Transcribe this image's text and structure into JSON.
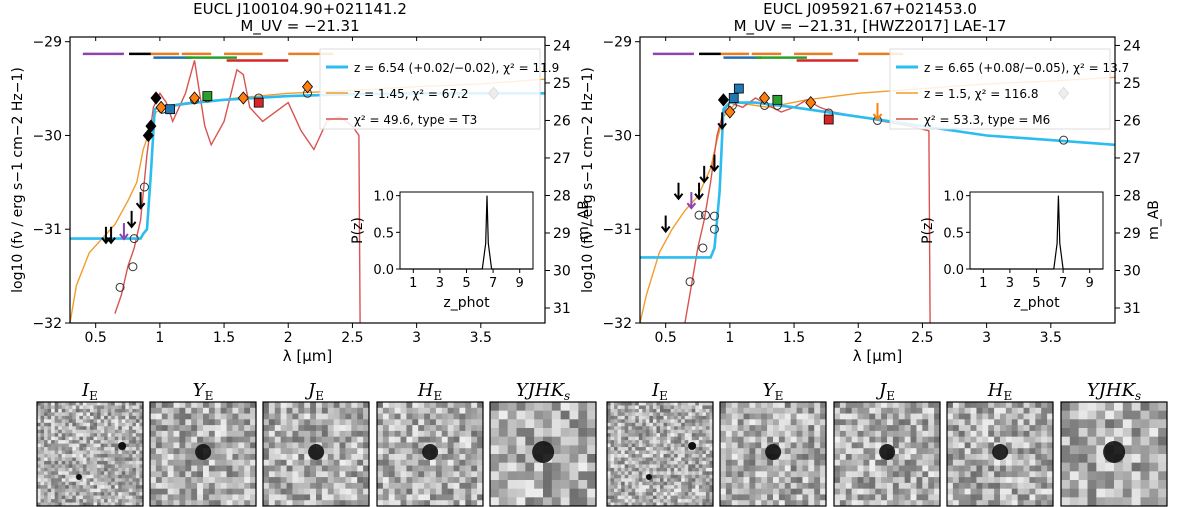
{
  "chart_data": [
    {
      "type": "line",
      "title": "EUCL J100104.90+021141.2",
      "subtitle": "M_UV = −21.31",
      "xlabel": "λ [μm]",
      "ylabel": "log10 (fν / erg s−1 cm−2 Hz−1)",
      "y2label": "m_AB",
      "xlim": [
        0.3,
        4.0
      ],
      "ylim": [
        -32.0,
        -28.95
      ],
      "xticks": [
        "0.5",
        "1",
        "1.5",
        "2",
        "2.5",
        "3",
        "3.5"
      ],
      "yticks": [
        "−29",
        "−30",
        "−31",
        "−32"
      ],
      "y2ticks": [
        "24",
        "25",
        "26",
        "27",
        "28",
        "29",
        "30",
        "31"
      ],
      "legend": [
        "z = 6.54 (+0.02/−0.02), χ² = 11.9",
        "z = 1.45, χ² = 67.2",
        "χ² = 49.6, type = T3"
      ],
      "series_colors": {
        "highz": "#2bbcf0",
        "lowz": "#f39c2a",
        "brown_dwarf": "#d9534f"
      },
      "series": [
        {
          "name": "high-z galaxy",
          "x": [
            0.3,
            0.85,
            0.87,
            0.9,
            0.93,
            0.96,
            1.0,
            1.2,
            1.5,
            2.0,
            2.5,
            3.0,
            3.5,
            4.0
          ],
          "y": [
            -31.1,
            -31.1,
            -31.05,
            -31.0,
            -30.4,
            -29.72,
            -29.7,
            -29.66,
            -29.62,
            -29.58,
            -29.56,
            -29.55,
            -29.55,
            -29.55
          ]
        },
        {
          "name": "low-z galaxy",
          "x": [
            0.3,
            0.35,
            0.45,
            0.55,
            0.65,
            0.75,
            0.82,
            0.87,
            0.92,
            0.97,
            1.05,
            1.3,
            1.6,
            2.0,
            2.5,
            3.0,
            3.5,
            4.0
          ],
          "y": [
            -32.0,
            -31.6,
            -31.25,
            -31.1,
            -30.95,
            -30.7,
            -30.5,
            -30.15,
            -29.95,
            -29.75,
            -29.7,
            -29.65,
            -29.6,
            -29.55,
            -29.52,
            -29.48,
            -29.45,
            -29.4
          ]
        },
        {
          "name": "T3 brown dwarf",
          "x": [
            0.65,
            0.7,
            0.75,
            0.8,
            0.85,
            0.9,
            0.95,
            1.0,
            1.05,
            1.1,
            1.15,
            1.2,
            1.27,
            1.35,
            1.4,
            1.5,
            1.6,
            1.65,
            1.7,
            1.8,
            2.0,
            2.1,
            2.2,
            2.3,
            2.4,
            2.5,
            2.55,
            2.56
          ],
          "y": [
            -31.9,
            -31.7,
            -31.4,
            -31.2,
            -30.9,
            -30.2,
            -29.7,
            -29.55,
            -29.65,
            -29.85,
            -29.7,
            -29.55,
            -29.2,
            -29.9,
            -30.1,
            -29.85,
            -29.3,
            -29.35,
            -29.7,
            -29.85,
            -29.65,
            -29.95,
            -30.15,
            -29.85,
            -29.8,
            -29.9,
            -30.0,
            -32.0
          ]
        }
      ],
      "observed": [
        {
          "x": 0.58,
          "y": -31.07,
          "type": "upper_limit",
          "color": "black"
        },
        {
          "x": 0.62,
          "y": -31.07,
          "type": "upper_limit",
          "color": "black"
        },
        {
          "x": 0.72,
          "y": -31.03,
          "type": "upper_limit",
          "color": "purple"
        },
        {
          "x": 0.78,
          "y": -30.9,
          "type": "upper_limit",
          "color": "black"
        },
        {
          "x": 0.85,
          "y": -30.7,
          "type": "upper_limit",
          "color": "black"
        },
        {
          "x": 0.91,
          "y": -30.0,
          "type": "diamond",
          "color": "black"
        },
        {
          "x": 0.93,
          "y": -29.9,
          "type": "diamond",
          "color": "black"
        },
        {
          "x": 0.97,
          "y": -29.6,
          "type": "diamond",
          "color": "black"
        },
        {
          "x": 1.01,
          "y": -29.7,
          "type": "diamond",
          "color": "orange"
        },
        {
          "x": 1.08,
          "y": -29.72,
          "type": "square",
          "color": "blue"
        },
        {
          "x": 1.27,
          "y": -29.6,
          "type": "diamond",
          "color": "orange"
        },
        {
          "x": 1.37,
          "y": -29.58,
          "type": "square",
          "color": "green"
        },
        {
          "x": 1.65,
          "y": -29.6,
          "type": "diamond",
          "color": "orange"
        },
        {
          "x": 1.77,
          "y": -29.65,
          "type": "square",
          "color": "red"
        },
        {
          "x": 2.15,
          "y": -29.48,
          "type": "diamond",
          "color": "orange"
        },
        {
          "x": 3.6,
          "y": -29.55,
          "type": "diamond",
          "color": "gray"
        }
      ],
      "model_points": [
        {
          "x": 0.69,
          "y": -31.62
        },
        {
          "x": 0.79,
          "y": -31.4
        },
        {
          "x": 0.8,
          "y": -31.1
        },
        {
          "x": 0.88,
          "y": -30.55
        },
        {
          "x": 1.02,
          "y": -29.72
        },
        {
          "x": 1.27,
          "y": -29.62
        },
        {
          "x": 1.37,
          "y": -29.6
        },
        {
          "x": 1.77,
          "y": -29.6
        },
        {
          "x": 2.15,
          "y": -29.55
        },
        {
          "x": 3.6,
          "y": -29.55
        }
      ],
      "filter_bars": [
        {
          "x0": 0.4,
          "x1": 0.72,
          "y": -29.13,
          "color": "#8e44ad"
        },
        {
          "x0": 0.76,
          "x1": 0.93,
          "y": -29.13,
          "color": "#000000"
        },
        {
          "x0": 0.93,
          "x1": 1.15,
          "y": -29.13,
          "color": "#e67e22"
        },
        {
          "x0": 0.95,
          "x1": 1.25,
          "y": -29.17,
          "color": "#1f6fb4"
        },
        {
          "x0": 1.17,
          "x1": 1.4,
          "y": -29.13,
          "color": "#e67e22"
        },
        {
          "x0": 1.2,
          "x1": 1.6,
          "y": -29.17,
          "color": "#27a02c"
        },
        {
          "x0": 1.5,
          "x1": 1.8,
          "y": -29.13,
          "color": "#e67e22"
        },
        {
          "x0": 1.52,
          "x1": 2.0,
          "y": -29.2,
          "color": "#d62728"
        },
        {
          "x0": 2.0,
          "x1": 2.35,
          "y": -29.13,
          "color": "#e67e22"
        }
      ],
      "inset": {
        "ylabel": "P(z)",
        "xlabel": "z_phot",
        "xticks": [
          "1",
          "3",
          "5",
          "7",
          "9"
        ],
        "yticks": [
          "0.0",
          "0.5",
          "1.0"
        ],
        "peak_z": 6.54,
        "xlim": [
          0,
          10
        ]
      }
    },
    {
      "type": "line",
      "title": "EUCL J095921.67+021453.0",
      "subtitle": "M_UV = −21.31, [HWZ2017] LAE-17",
      "xlabel": "λ [μm]",
      "ylabel": "log10 (fν / erg s−1 cm−2 Hz−1)",
      "y2label": "m_AB",
      "xlim": [
        0.3,
        4.0
      ],
      "ylim": [
        -32.0,
        -28.95
      ],
      "xticks": [
        "0.5",
        "1",
        "1.5",
        "2",
        "2.5",
        "3",
        "3.5"
      ],
      "yticks": [
        "−29",
        "−30",
        "−31",
        "−32"
      ],
      "y2ticks": [
        "24",
        "25",
        "26",
        "27",
        "28",
        "29",
        "30",
        "31"
      ],
      "legend": [
        "z = 6.65 (+0.08/−0.05), χ² = 13.7",
        "z = 1.5, χ² = 116.8",
        "χ² = 53.3, type = M6"
      ],
      "series_colors": {
        "highz": "#2bbcf0",
        "lowz": "#f39c2a",
        "brown_dwarf": "#d9534f"
      },
      "series": [
        {
          "name": "high-z galaxy",
          "x": [
            0.3,
            0.85,
            0.88,
            0.92,
            0.95,
            1.0,
            1.2,
            1.5,
            2.0,
            2.5,
            3.0,
            3.5,
            4.0
          ],
          "y": [
            -31.3,
            -31.3,
            -31.2,
            -30.6,
            -29.72,
            -29.65,
            -29.65,
            -29.7,
            -29.8,
            -29.9,
            -30.0,
            -30.05,
            -30.1
          ]
        },
        {
          "name": "low-z galaxy",
          "x": [
            0.3,
            0.35,
            0.45,
            0.55,
            0.65,
            0.75,
            0.85,
            0.9,
            0.95,
            1.05,
            1.3,
            1.6,
            2.0,
            2.5,
            3.0,
            3.5,
            4.0
          ],
          "y": [
            -32.0,
            -31.7,
            -31.25,
            -31.0,
            -30.8,
            -30.65,
            -30.35,
            -30.05,
            -29.8,
            -29.65,
            -29.7,
            -29.62,
            -29.55,
            -29.5,
            -29.45,
            -29.42,
            -29.38
          ]
        },
        {
          "name": "M6 brown dwarf",
          "x": [
            0.65,
            0.7,
            0.75,
            0.8,
            0.85,
            0.9,
            0.95,
            1.0,
            1.1,
            1.2,
            1.3,
            1.4,
            1.5,
            1.6,
            1.7,
            1.8,
            2.0,
            2.2,
            2.4,
            2.55,
            2.56
          ],
          "y": [
            -32.0,
            -31.6,
            -31.2,
            -30.9,
            -30.5,
            -30.0,
            -29.75,
            -29.65,
            -29.7,
            -29.6,
            -29.68,
            -29.75,
            -29.7,
            -29.62,
            -29.7,
            -29.75,
            -29.8,
            -29.85,
            -29.9,
            -29.95,
            -32.0
          ]
        }
      ],
      "observed": [
        {
          "x": 0.5,
          "y": -30.95,
          "type": "upper_limit",
          "color": "black"
        },
        {
          "x": 0.6,
          "y": -30.6,
          "type": "upper_limit",
          "color": "black"
        },
        {
          "x": 0.7,
          "y": -30.7,
          "type": "upper_limit",
          "color": "purple"
        },
        {
          "x": 0.76,
          "y": -30.6,
          "type": "upper_limit",
          "color": "black"
        },
        {
          "x": 0.8,
          "y": -30.42,
          "type": "upper_limit",
          "color": "black"
        },
        {
          "x": 0.88,
          "y": -30.3,
          "type": "upper_limit",
          "color": "black"
        },
        {
          "x": 0.94,
          "y": -29.85,
          "type": "upper_limit",
          "color": "black"
        },
        {
          "x": 0.95,
          "y": -29.62,
          "type": "diamond",
          "color": "black"
        },
        {
          "x": 1.0,
          "y": -29.75,
          "type": "diamond",
          "color": "orange"
        },
        {
          "x": 1.03,
          "y": -29.6,
          "type": "square",
          "color": "blue"
        },
        {
          "x": 1.07,
          "y": -29.5,
          "type": "square",
          "color": "blue"
        },
        {
          "x": 1.27,
          "y": -29.6,
          "type": "diamond",
          "color": "orange"
        },
        {
          "x": 1.37,
          "y": -29.62,
          "type": "square",
          "color": "green"
        },
        {
          "x": 1.63,
          "y": -29.65,
          "type": "diamond",
          "color": "orange"
        },
        {
          "x": 1.77,
          "y": -29.83,
          "type": "square",
          "color": "red"
        },
        {
          "x": 2.15,
          "y": -29.75,
          "type": "upper_limit",
          "color": "orange"
        },
        {
          "x": 3.6,
          "y": -29.55,
          "type": "diamond",
          "color": "gray"
        }
      ],
      "model_points": [
        {
          "x": 0.69,
          "y": -31.56
        },
        {
          "x": 0.76,
          "y": -30.85
        },
        {
          "x": 0.79,
          "y": -31.2
        },
        {
          "x": 0.81,
          "y": -30.85
        },
        {
          "x": 0.88,
          "y": -31.0
        },
        {
          "x": 0.88,
          "y": -30.86
        },
        {
          "x": 1.02,
          "y": -29.68
        },
        {
          "x": 1.27,
          "y": -29.68
        },
        {
          "x": 1.37,
          "y": -29.68
        },
        {
          "x": 1.77,
          "y": -29.76
        },
        {
          "x": 2.15,
          "y": -29.84
        },
        {
          "x": 3.6,
          "y": -30.05
        }
      ],
      "filter_bars": [
        {
          "x0": 0.4,
          "x1": 0.72,
          "y": -29.13,
          "color": "#8e44ad"
        },
        {
          "x0": 0.76,
          "x1": 0.93,
          "y": -29.13,
          "color": "#000000"
        },
        {
          "x0": 0.93,
          "x1": 1.15,
          "y": -29.13,
          "color": "#e67e22"
        },
        {
          "x0": 0.95,
          "x1": 1.25,
          "y": -29.17,
          "color": "#1f6fb4"
        },
        {
          "x0": 1.17,
          "x1": 1.4,
          "y": -29.13,
          "color": "#e67e22"
        },
        {
          "x0": 1.2,
          "x1": 1.6,
          "y": -29.17,
          "color": "#27a02c"
        },
        {
          "x0": 1.5,
          "x1": 1.8,
          "y": -29.13,
          "color": "#e67e22"
        },
        {
          "x0": 1.52,
          "x1": 2.0,
          "y": -29.2,
          "color": "#d62728"
        },
        {
          "x0": 2.0,
          "x1": 2.35,
          "y": -29.13,
          "color": "#e67e22"
        }
      ],
      "inset": {
        "ylabel": "P(z)",
        "xlabel": "z_phot",
        "xticks": [
          "1",
          "3",
          "5",
          "7",
          "9"
        ],
        "yticks": [
          "0.0",
          "0.5",
          "1.0"
        ],
        "peak_z": 6.65,
        "xlim": [
          0,
          10
        ]
      }
    }
  ],
  "stamp_labels": [
    "I_E",
    "Y_E",
    "J_E",
    "H_E",
    "YJHK_s",
    "I_E",
    "Y_E",
    "J_E",
    "H_E",
    "YJHK_s"
  ]
}
